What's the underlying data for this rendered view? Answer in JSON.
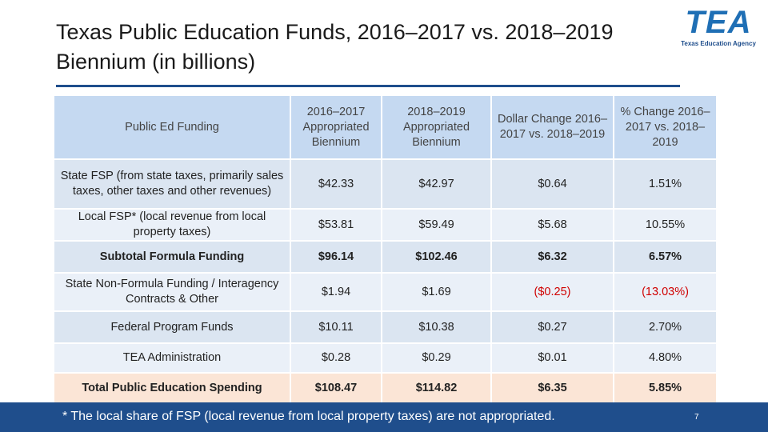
{
  "header": {
    "title": "Texas Public Education Funds, 2016–2017 vs. 2018–2019 Biennium (in billions)",
    "logo": "TEA",
    "logo_subtitle": "Texas Education Agency"
  },
  "table": {
    "columns": [
      "Public Ed Funding",
      "2016–2017 Appropriated Biennium",
      "2018–2019 Appropriated Biennium",
      "Dollar Change 2016–2017 vs. 2018–2019",
      "% Change 2016–2017 vs. 2018–2019"
    ],
    "rows": [
      [
        "State FSP (from state taxes, primarily sales taxes, other taxes and other revenues)",
        "$42.33",
        "$42.97",
        "$0.64",
        "1.51%"
      ],
      [
        "Local FSP* (local revenue from local property taxes)",
        "$53.81",
        "$59.49",
        "$5.68",
        "10.55%"
      ],
      [
        "Subtotal Formula Funding",
        "$96.14",
        "$102.46",
        "$6.32",
        "6.57%"
      ],
      [
        "State Non-Formula Funding / Interagency Contracts & Other",
        "$1.94",
        "$1.69",
        "($0.25)",
        "(13.03%)"
      ],
      [
        "Federal Program Funds",
        "$10.11",
        "$10.38",
        "$0.27",
        "2.70%"
      ],
      [
        "TEA Administration",
        "$0.28",
        "$0.29",
        "$0.01",
        "4.80%"
      ],
      [
        "Total Public Education Spending",
        "$108.47",
        "$114.82",
        "$6.35",
        "5.85%"
      ]
    ]
  },
  "footnote": "* The local share of FSP (local revenue from local property taxes) are not appropriated.",
  "page_number": "7"
}
